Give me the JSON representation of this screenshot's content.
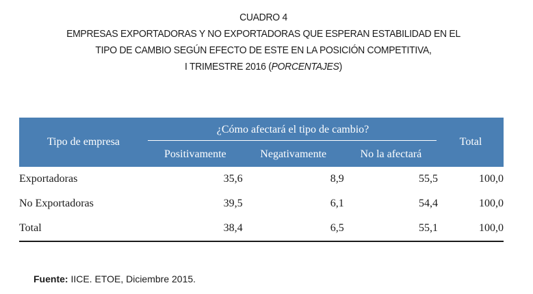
{
  "title": {
    "line1": "CUADRO 4",
    "line2": "EMPRESAS EXPORTADORAS Y NO EXPORTADORAS QUE ESPERAN ESTABILIDAD EN EL",
    "line3": "TIPO DE CAMBIO SEGÚN EFECTO DE ESTE EN LA POSICIÓN COMPETITIVA,",
    "line4_main": "I TRIMESTRE 2016 (",
    "line4_italic": "PORCENTAJES",
    "line4_end": ")"
  },
  "table": {
    "row_header": "Tipo de empresa",
    "group_header": "¿Cómo afectará el tipo de cambio?",
    "sub_headers": [
      "Positivamente",
      "Negativamente",
      "No la afectará"
    ],
    "total_header": "Total",
    "rows": [
      {
        "label": "Exportadoras",
        "positivamente": "35,6",
        "negativamente": "8,9",
        "no_afectara": "55,5",
        "total": "100,0"
      },
      {
        "label": "No Exportadoras",
        "positivamente": "39,5",
        "negativamente": "6,1",
        "no_afectara": "54,4",
        "total": "100,0"
      },
      {
        "label": "Total",
        "positivamente": "38,4",
        "negativamente": "6,5",
        "no_afectara": "55,1",
        "total": "100,0"
      }
    ]
  },
  "source": {
    "label": "Fuente:",
    "text": " IICE. ETOE, Diciembre 2015."
  },
  "colors": {
    "header_bg": "#4a7fb4",
    "header_text": "#ffffff"
  }
}
